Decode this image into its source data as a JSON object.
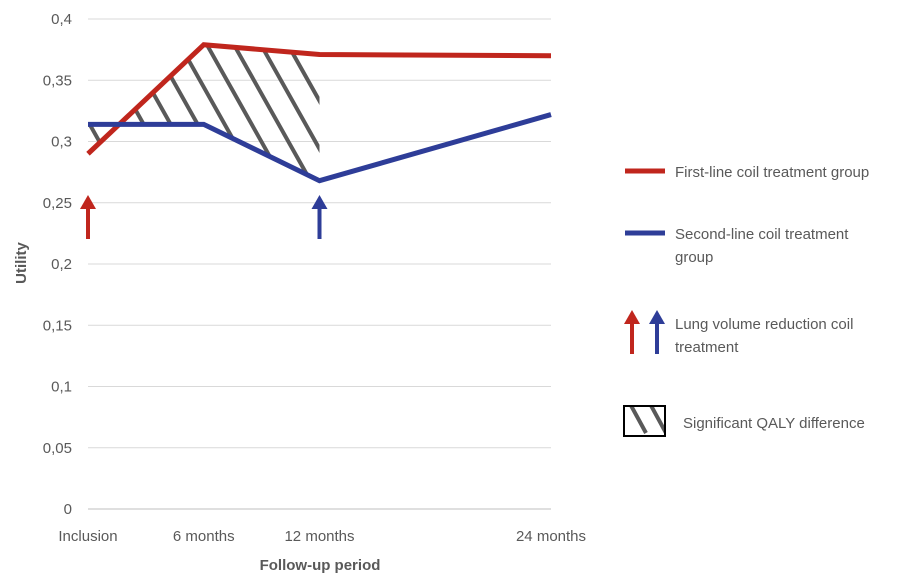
{
  "chart_data": {
    "type": "line",
    "title": "",
    "xlabel": "Follow-up period",
    "ylabel": "Utility",
    "categories": [
      "Inclusion",
      "6 months",
      "12 months",
      "24 months"
    ],
    "x_positions_months": [
      0,
      6,
      12,
      24
    ],
    "ylim": [
      0,
      0.4
    ],
    "y_ticks": [
      "0",
      "0,05",
      "0,1",
      "0,15",
      "0,2",
      "0,25",
      "0,3",
      "0,35",
      "0,4"
    ],
    "y_tick_values": [
      0,
      0.05,
      0.1,
      0.15,
      0.2,
      0.25,
      0.3,
      0.35,
      0.4
    ],
    "grid": true,
    "legend_position": "right",
    "series": [
      {
        "name": "First-line coil treatment group",
        "color": "#C0261D",
        "values": [
          0.29,
          0.379,
          0.371,
          0.37
        ]
      },
      {
        "name": "Second-line coil treatment group",
        "color": "#2E3D98",
        "values": [
          0.314,
          0.314,
          0.268,
          0.322
        ]
      }
    ],
    "annotations": {
      "treatment_arrows": [
        {
          "series": "First-line coil treatment group",
          "at": "Inclusion",
          "color": "#C0261D"
        },
        {
          "series": "Second-line coil treatment group",
          "at": "12 months",
          "color": "#2E3D98"
        }
      ],
      "hatched_region": {
        "from": "Inclusion",
        "to": "12 months",
        "color": "#595959"
      }
    },
    "legend": {
      "arrows_label": "Lung volume reduction coil treatment",
      "hatch_label": "Significant QALY difference"
    }
  }
}
